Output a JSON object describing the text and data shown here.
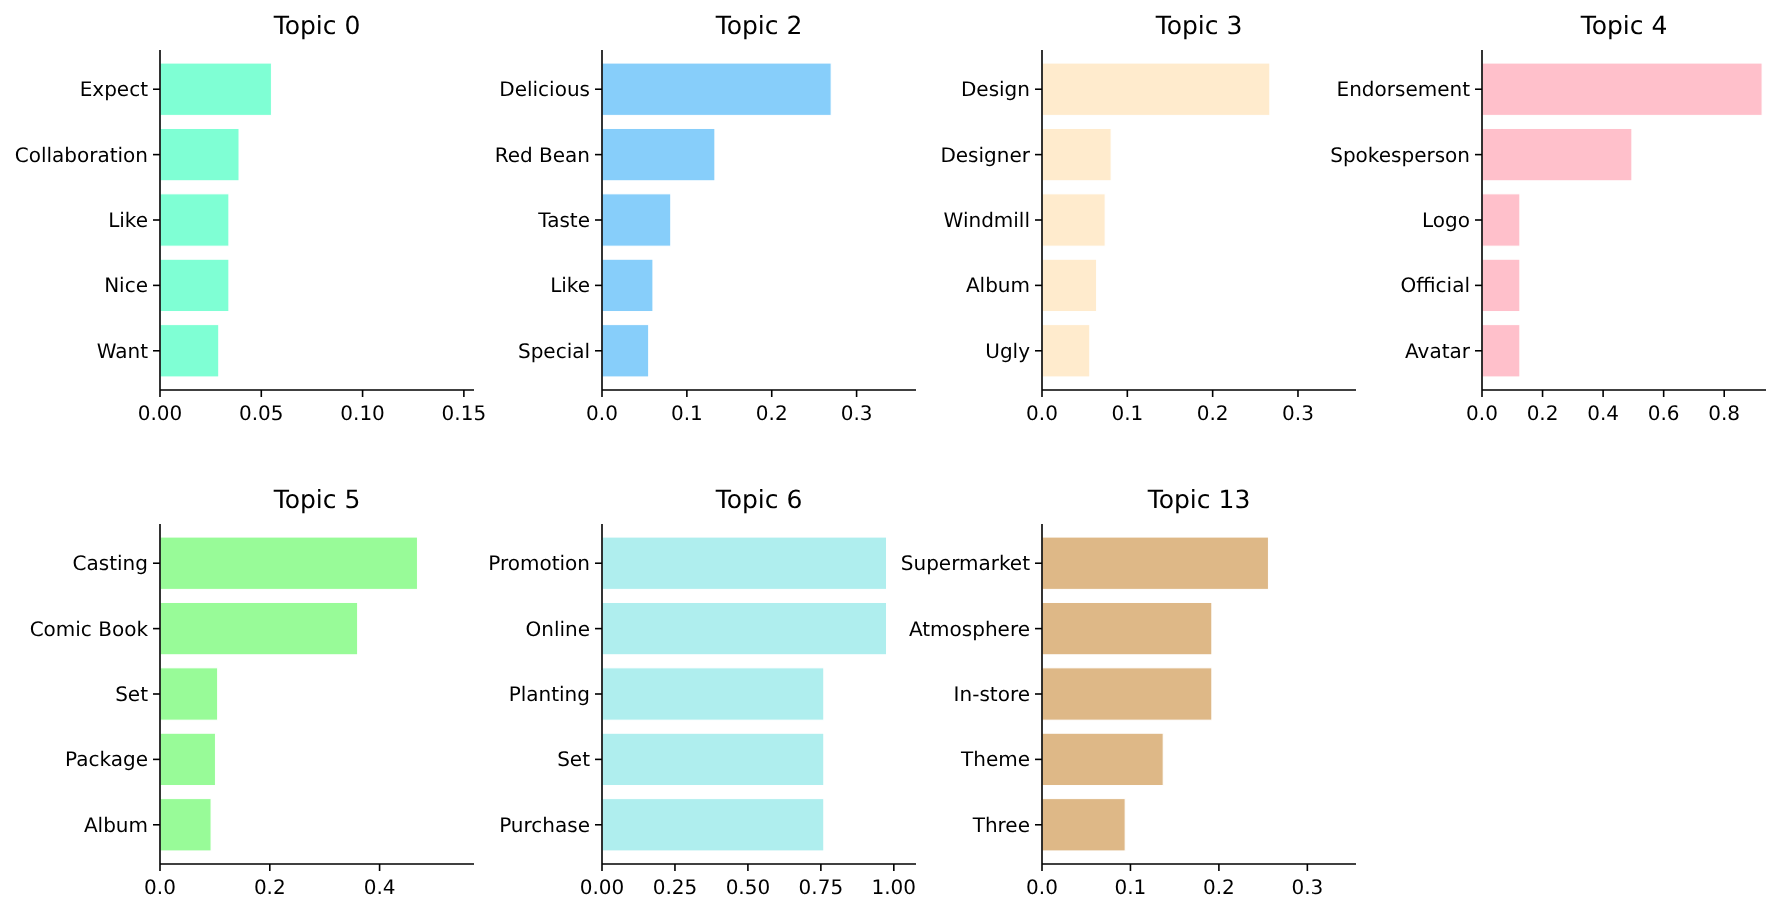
{
  "chart_data": [
    {
      "type": "bar",
      "orientation": "horizontal",
      "title": "Topic 0",
      "categories": [
        "Expect",
        "Collaboration",
        "Like",
        "Nice",
        "Want"
      ],
      "values": [
        0.055,
        0.039,
        0.034,
        0.034,
        0.029
      ],
      "color": "#7fffd4",
      "xlim": [
        0,
        0.155
      ],
      "xticks": [
        {
          "value": 0,
          "label": "0.00"
        },
        {
          "value": 0.05,
          "label": "0.05"
        },
        {
          "value": 0.1,
          "label": "0.10"
        },
        {
          "value": 0.15,
          "label": "0.15"
        }
      ]
    },
    {
      "type": "bar",
      "orientation": "horizontal",
      "title": "Topic 2",
      "categories": [
        "Delicious",
        "Red Bean",
        "Taste",
        "Like",
        "Special"
      ],
      "values": [
        0.27,
        0.133,
        0.081,
        0.06,
        0.055
      ],
      "color": "#87cefa",
      "xlim": [
        0,
        0.37
      ],
      "xticks": [
        {
          "value": 0,
          "label": "0.0"
        },
        {
          "value": 0.1,
          "label": "0.1"
        },
        {
          "value": 0.2,
          "label": "0.2"
        },
        {
          "value": 0.3,
          "label": "0.3"
        }
      ]
    },
    {
      "type": "bar",
      "orientation": "horizontal",
      "title": "Topic 3",
      "categories": [
        "Design",
        "Designer",
        "Windmill",
        "Album",
        "Ugly"
      ],
      "values": [
        0.267,
        0.081,
        0.074,
        0.064,
        0.056
      ],
      "color": "#ffebcd",
      "xlim": [
        0,
        0.368
      ],
      "xticks": [
        {
          "value": 0,
          "label": "0.0"
        },
        {
          "value": 0.1,
          "label": "0.1"
        },
        {
          "value": 0.2,
          "label": "0.2"
        },
        {
          "value": 0.3,
          "label": "0.3"
        }
      ]
    },
    {
      "type": "bar",
      "orientation": "horizontal",
      "title": "Topic 4",
      "categories": [
        "Endorsement",
        "Spokesperson",
        "Logo",
        "Official",
        "Avatar"
      ],
      "values": [
        0.925,
        0.495,
        0.125,
        0.125,
        0.125
      ],
      "color": "#ffc0cb",
      "xlim": [
        0,
        0.938
      ],
      "xticks": [
        {
          "value": 0,
          "label": "0.0"
        },
        {
          "value": 0.2,
          "label": "0.2"
        },
        {
          "value": 0.4,
          "label": "0.4"
        },
        {
          "value": 0.6,
          "label": "0.6"
        },
        {
          "value": 0.8,
          "label": "0.8"
        }
      ]
    },
    {
      "type": "bar",
      "orientation": "horizontal",
      "title": "Topic 5",
      "categories": [
        "Casting",
        "Comic Book",
        "Set",
        "Package",
        "Album"
      ],
      "values": [
        0.469,
        0.36,
        0.105,
        0.101,
        0.093
      ],
      "color": "#98fb98",
      "xlim": [
        0,
        0.572
      ],
      "xticks": [
        {
          "value": 0,
          "label": "0.0"
        },
        {
          "value": 0.2,
          "label": "0.2"
        },
        {
          "value": 0.4,
          "label": "0.4"
        }
      ]
    },
    {
      "type": "bar",
      "orientation": "horizontal",
      "title": "Topic 6",
      "categories": [
        "Promotion",
        "Online",
        "Planting",
        "Set",
        "Purchase"
      ],
      "values": [
        0.975,
        0.975,
        0.76,
        0.76,
        0.76
      ],
      "color": "#afeeee",
      "xlim": [
        0,
        1.076
      ],
      "xticks": [
        {
          "value": 0,
          "label": "0.00"
        },
        {
          "value": 0.25,
          "label": "0.25"
        },
        {
          "value": 0.5,
          "label": "0.50"
        },
        {
          "value": 0.75,
          "label": "0.75"
        },
        {
          "value": 1,
          "label": "1.00"
        }
      ]
    },
    {
      "type": "bar",
      "orientation": "horizontal",
      "title": "Topic 13",
      "categories": [
        "Supermarket",
        "Atmosphere",
        "In-store",
        "Theme",
        "Three"
      ],
      "values": [
        0.256,
        0.192,
        0.192,
        0.137,
        0.094
      ],
      "color": "#deb887",
      "xlim": [
        0,
        0.355
      ],
      "xticks": [
        {
          "value": 0,
          "label": "0.0"
        },
        {
          "value": 0.1,
          "label": "0.1"
        },
        {
          "value": 0.2,
          "label": "0.2"
        },
        {
          "value": 0.3,
          "label": "0.3"
        }
      ]
    }
  ]
}
